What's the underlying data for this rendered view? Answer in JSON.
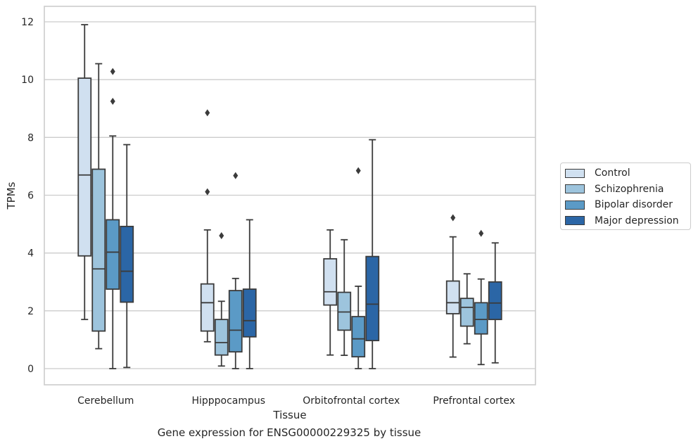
{
  "chart_data": {
    "type": "box",
    "caption": "Gene expression for ENSG00000229325 by tissue",
    "xlabel": "Tissue",
    "ylabel": "TPMs",
    "ylim": [
      -0.6,
      12.5
    ],
    "yticks": [
      0,
      2,
      4,
      6,
      8,
      10,
      12
    ],
    "grid": true,
    "legend_position": "right",
    "categories": [
      "Cerebellum",
      "Hipppocampus",
      "Orbitofrontal cortex",
      "Prefrontal cortex"
    ],
    "series": [
      {
        "name": "Control",
        "color": "#d0e0f0",
        "boxes": [
          {
            "min": 1.7,
            "q1": 3.9,
            "median": 6.7,
            "q3": 10.05,
            "max": 11.9,
            "outliers": []
          },
          {
            "min": 0.93,
            "q1": 1.3,
            "median": 2.28,
            "q3": 2.93,
            "max": 4.8,
            "outliers": [
              6.12,
              8.85
            ]
          },
          {
            "min": 0.47,
            "q1": 2.2,
            "median": 2.66,
            "q3": 3.8,
            "max": 4.8,
            "outliers": []
          },
          {
            "min": 0.4,
            "q1": 1.9,
            "median": 2.28,
            "q3": 3.03,
            "max": 4.56,
            "outliers": [
              5.22
            ]
          }
        ]
      },
      {
        "name": "Schizophrenia",
        "color": "#9dc4dd",
        "boxes": [
          {
            "min": 0.69,
            "q1": 1.3,
            "median": 3.45,
            "q3": 6.9,
            "max": 10.55,
            "outliers": []
          },
          {
            "min": 0.09,
            "q1": 0.47,
            "median": 0.9,
            "q3": 1.7,
            "max": 2.33,
            "outliers": [
              4.6
            ]
          },
          {
            "min": 0.46,
            "q1": 1.33,
            "median": 1.96,
            "q3": 2.64,
            "max": 4.46,
            "outliers": []
          },
          {
            "min": 0.86,
            "q1": 1.47,
            "median": 2.12,
            "q3": 2.43,
            "max": 3.28,
            "outliers": []
          }
        ]
      },
      {
        "name": "Bipolar disorder",
        "color": "#5b9ac6",
        "boxes": [
          {
            "min": 0.0,
            "q1": 2.75,
            "median": 4.03,
            "q3": 5.15,
            "max": 8.05,
            "outliers": [
              9.25,
              10.28
            ]
          },
          {
            "min": 0.0,
            "q1": 0.58,
            "median": 1.33,
            "q3": 2.7,
            "max": 3.12,
            "outliers": [
              6.68
            ]
          },
          {
            "min": 0.0,
            "q1": 0.41,
            "median": 1.03,
            "q3": 1.8,
            "max": 2.85,
            "outliers": [
              6.85
            ]
          },
          {
            "min": 0.14,
            "q1": 1.2,
            "median": 1.7,
            "q3": 2.28,
            "max": 3.1,
            "outliers": [
              4.68
            ]
          }
        ]
      },
      {
        "name": "Major depression",
        "color": "#2b66a6",
        "boxes": [
          {
            "min": 0.04,
            "q1": 2.3,
            "median": 3.37,
            "q3": 4.92,
            "max": 7.75,
            "outliers": []
          },
          {
            "min": 0.0,
            "q1": 1.1,
            "median": 1.66,
            "q3": 2.75,
            "max": 5.15,
            "outliers": []
          },
          {
            "min": 0.0,
            "q1": 0.97,
            "median": 2.23,
            "q3": 3.88,
            "max": 7.92,
            "outliers": []
          },
          {
            "min": 0.2,
            "q1": 1.7,
            "median": 2.27,
            "q3": 3.0,
            "max": 4.35,
            "outliers": []
          }
        ]
      }
    ]
  }
}
